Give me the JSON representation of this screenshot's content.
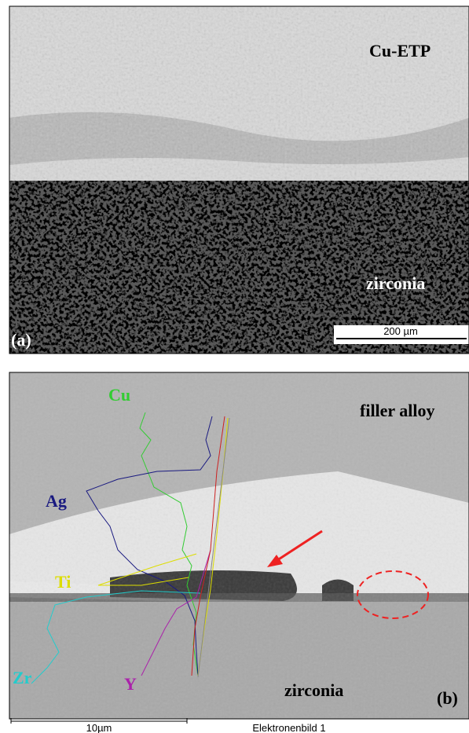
{
  "panel_a": {
    "top_label": "Cu-ETP",
    "bottom_label": "zirconia",
    "panel_label": "(a)",
    "scale_bar": "200 µm"
  },
  "panel_b": {
    "elements": [
      "Cu",
      "Ag",
      "Ti",
      "Zr",
      "Y"
    ],
    "top_label": "filler alloy",
    "bottom_label": "zirconia",
    "panel_label": "(b)",
    "scale_bar": "10µm",
    "caption": "Elektronenbild  1"
  }
}
